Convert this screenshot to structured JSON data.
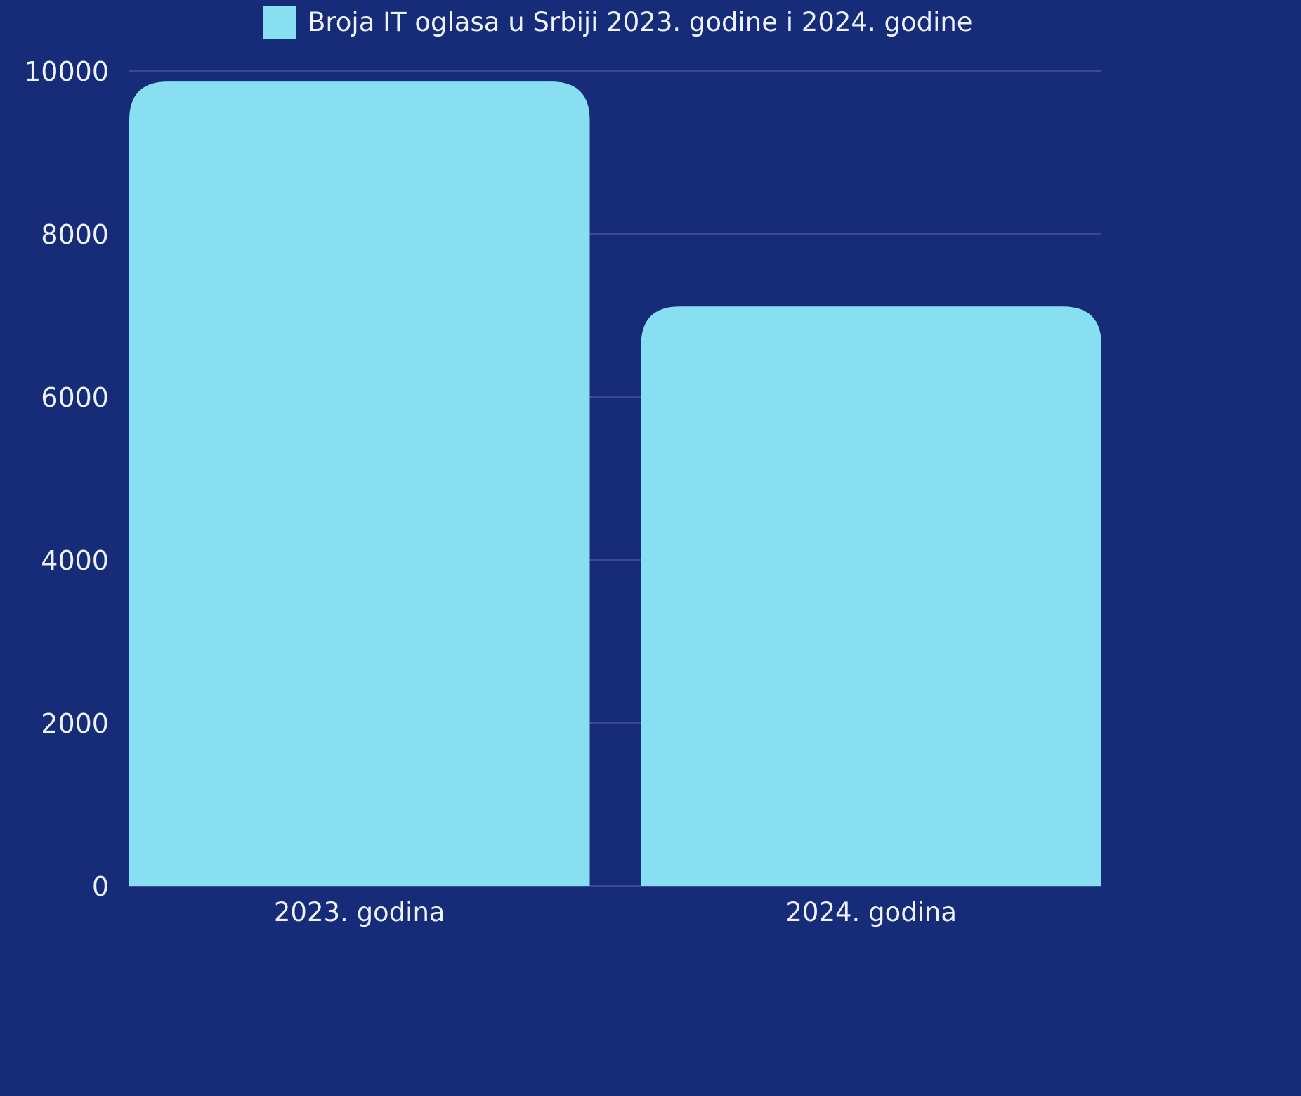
{
  "chart_data": {
    "type": "bar",
    "categories": [
      "2023. godina",
      "2024. godina"
    ],
    "series": [
      {
        "name": "Broja IT oglasa u Srbiji 2023. godine i 2024. godine",
        "values": [
          9870,
          7110
        ]
      }
    ],
    "ylim": [
      0,
      10000
    ],
    "y_ticks": [
      0,
      2000,
      4000,
      6000,
      8000,
      10000
    ],
    "grid": true,
    "legend_position": "top",
    "colors": {
      "background": "#162c78",
      "bar": "#87dff1",
      "text": "#eef3ff",
      "grid": "#8ea2c8"
    }
  }
}
